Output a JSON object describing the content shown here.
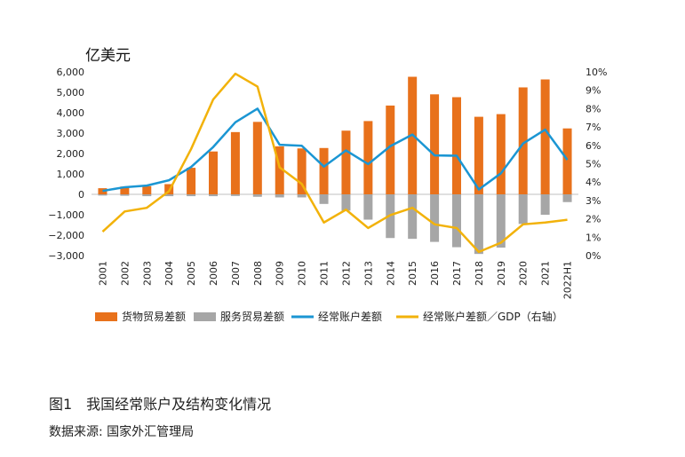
{
  "unit_label": "亿美元",
  "caption": "图1　我国经常账户及结构变化情况",
  "source": "数据来源: 国家外汇管理局",
  "colors": {
    "goods": "#e8711b",
    "services": "#a6a6a6",
    "current": "#1b96d3",
    "ratio": "#f2b20a"
  },
  "chart_data": {
    "type": "bar",
    "categories": [
      "2001",
      "2002",
      "2003",
      "2004",
      "2005",
      "2006",
      "2007",
      "2008",
      "2009",
      "2010",
      "2011",
      "2012",
      "2013",
      "2014",
      "2015",
      "2016",
      "2017",
      "2018",
      "2019",
      "2020",
      "2021",
      "2022H1"
    ],
    "ylim": [
      -3000,
      6000
    ],
    "y_ticks": [
      "6,000",
      "5,000",
      "4,000",
      "3,000",
      "2,000",
      "1,000",
      "0",
      "−1,000",
      "−2,000",
      "−3,000"
    ],
    "y_tick_values": [
      6000,
      5000,
      4000,
      3000,
      2000,
      1000,
      0,
      -1000,
      -2000,
      -3000
    ],
    "y2lim": [
      0,
      10
    ],
    "y2_ticks": [
      "10%",
      "9%",
      "8%",
      "7%",
      "6%",
      "5%",
      "4%",
      "3%",
      "2%",
      "1%",
      "0%"
    ],
    "y2_tick_values": [
      10,
      9,
      8,
      7,
      6,
      5,
      4,
      3,
      2,
      1,
      0
    ],
    "series": [
      {
        "name": "货物贸易差额",
        "kind": "bar",
        "axis": "left",
        "values": [
          300,
          380,
          400,
          500,
          1300,
          2100,
          3050,
          3550,
          2350,
          2250,
          2270,
          3120,
          3590,
          4350,
          5760,
          4900,
          4760,
          3800,
          3930,
          5240,
          5630,
          3230
        ]
      },
      {
        "name": "服务贸易差额",
        "kind": "bar",
        "axis": "left",
        "values": [
          -60,
          -70,
          -90,
          -90,
          -90,
          -90,
          -80,
          -120,
          -150,
          -150,
          -470,
          -800,
          -1240,
          -2140,
          -2180,
          -2330,
          -2590,
          -2920,
          -2610,
          -1450,
          -1000,
          -380
        ]
      },
      {
        "name": "经常账户差额",
        "kind": "line",
        "axis": "left",
        "values": [
          170,
          350,
          430,
          690,
          1340,
          2320,
          3530,
          4200,
          2430,
          2380,
          1360,
          2150,
          1480,
          2360,
          2930,
          1910,
          1890,
          240,
          1030,
          2490,
          3170,
          1690
        ]
      },
      {
        "name": "经常账户差额／GDP（右轴）",
        "kind": "line",
        "axis": "right",
        "values": [
          1.3,
          2.4,
          2.6,
          3.5,
          5.8,
          8.5,
          9.9,
          9.2,
          4.8,
          3.9,
          1.8,
          2.5,
          1.5,
          2.2,
          2.6,
          1.7,
          1.5,
          0.2,
          0.7,
          1.7,
          1.8,
          1.95
        ]
      }
    ]
  }
}
